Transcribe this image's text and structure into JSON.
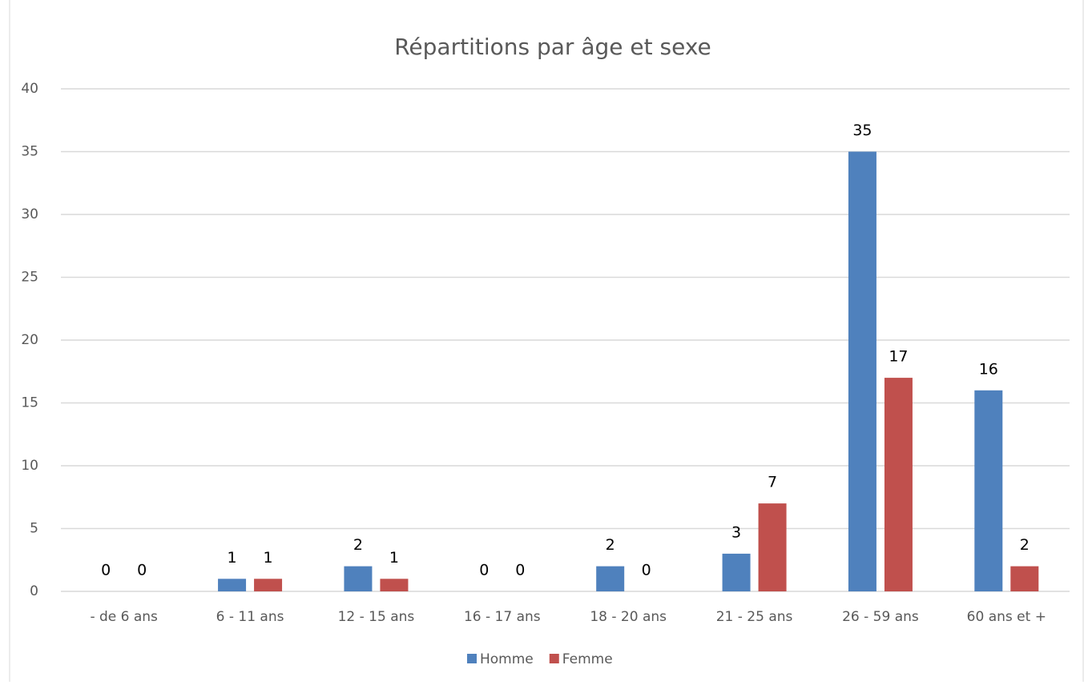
{
  "chart_data": {
    "type": "bar",
    "title": "Répartitions par âge et sexe",
    "categories": [
      "- de 6 ans",
      "6 - 11 ans",
      "12 - 15 ans",
      "16 - 17 ans",
      "18 - 20 ans",
      "21 - 25 ans",
      "26 - 59 ans",
      "60 ans et +"
    ],
    "series": [
      {
        "name": "Homme",
        "color": "#4f81bd",
        "values": [
          0,
          1,
          2,
          0,
          2,
          3,
          35,
          16
        ]
      },
      {
        "name": "Femme",
        "color": "#c0504d",
        "values": [
          0,
          1,
          1,
          0,
          0,
          7,
          17,
          2
        ]
      }
    ],
    "ylim": [
      0,
      40
    ],
    "yticks": [
      0,
      5,
      10,
      15,
      20,
      25,
      30,
      35,
      40
    ],
    "grid": true,
    "legend": "bottom"
  }
}
